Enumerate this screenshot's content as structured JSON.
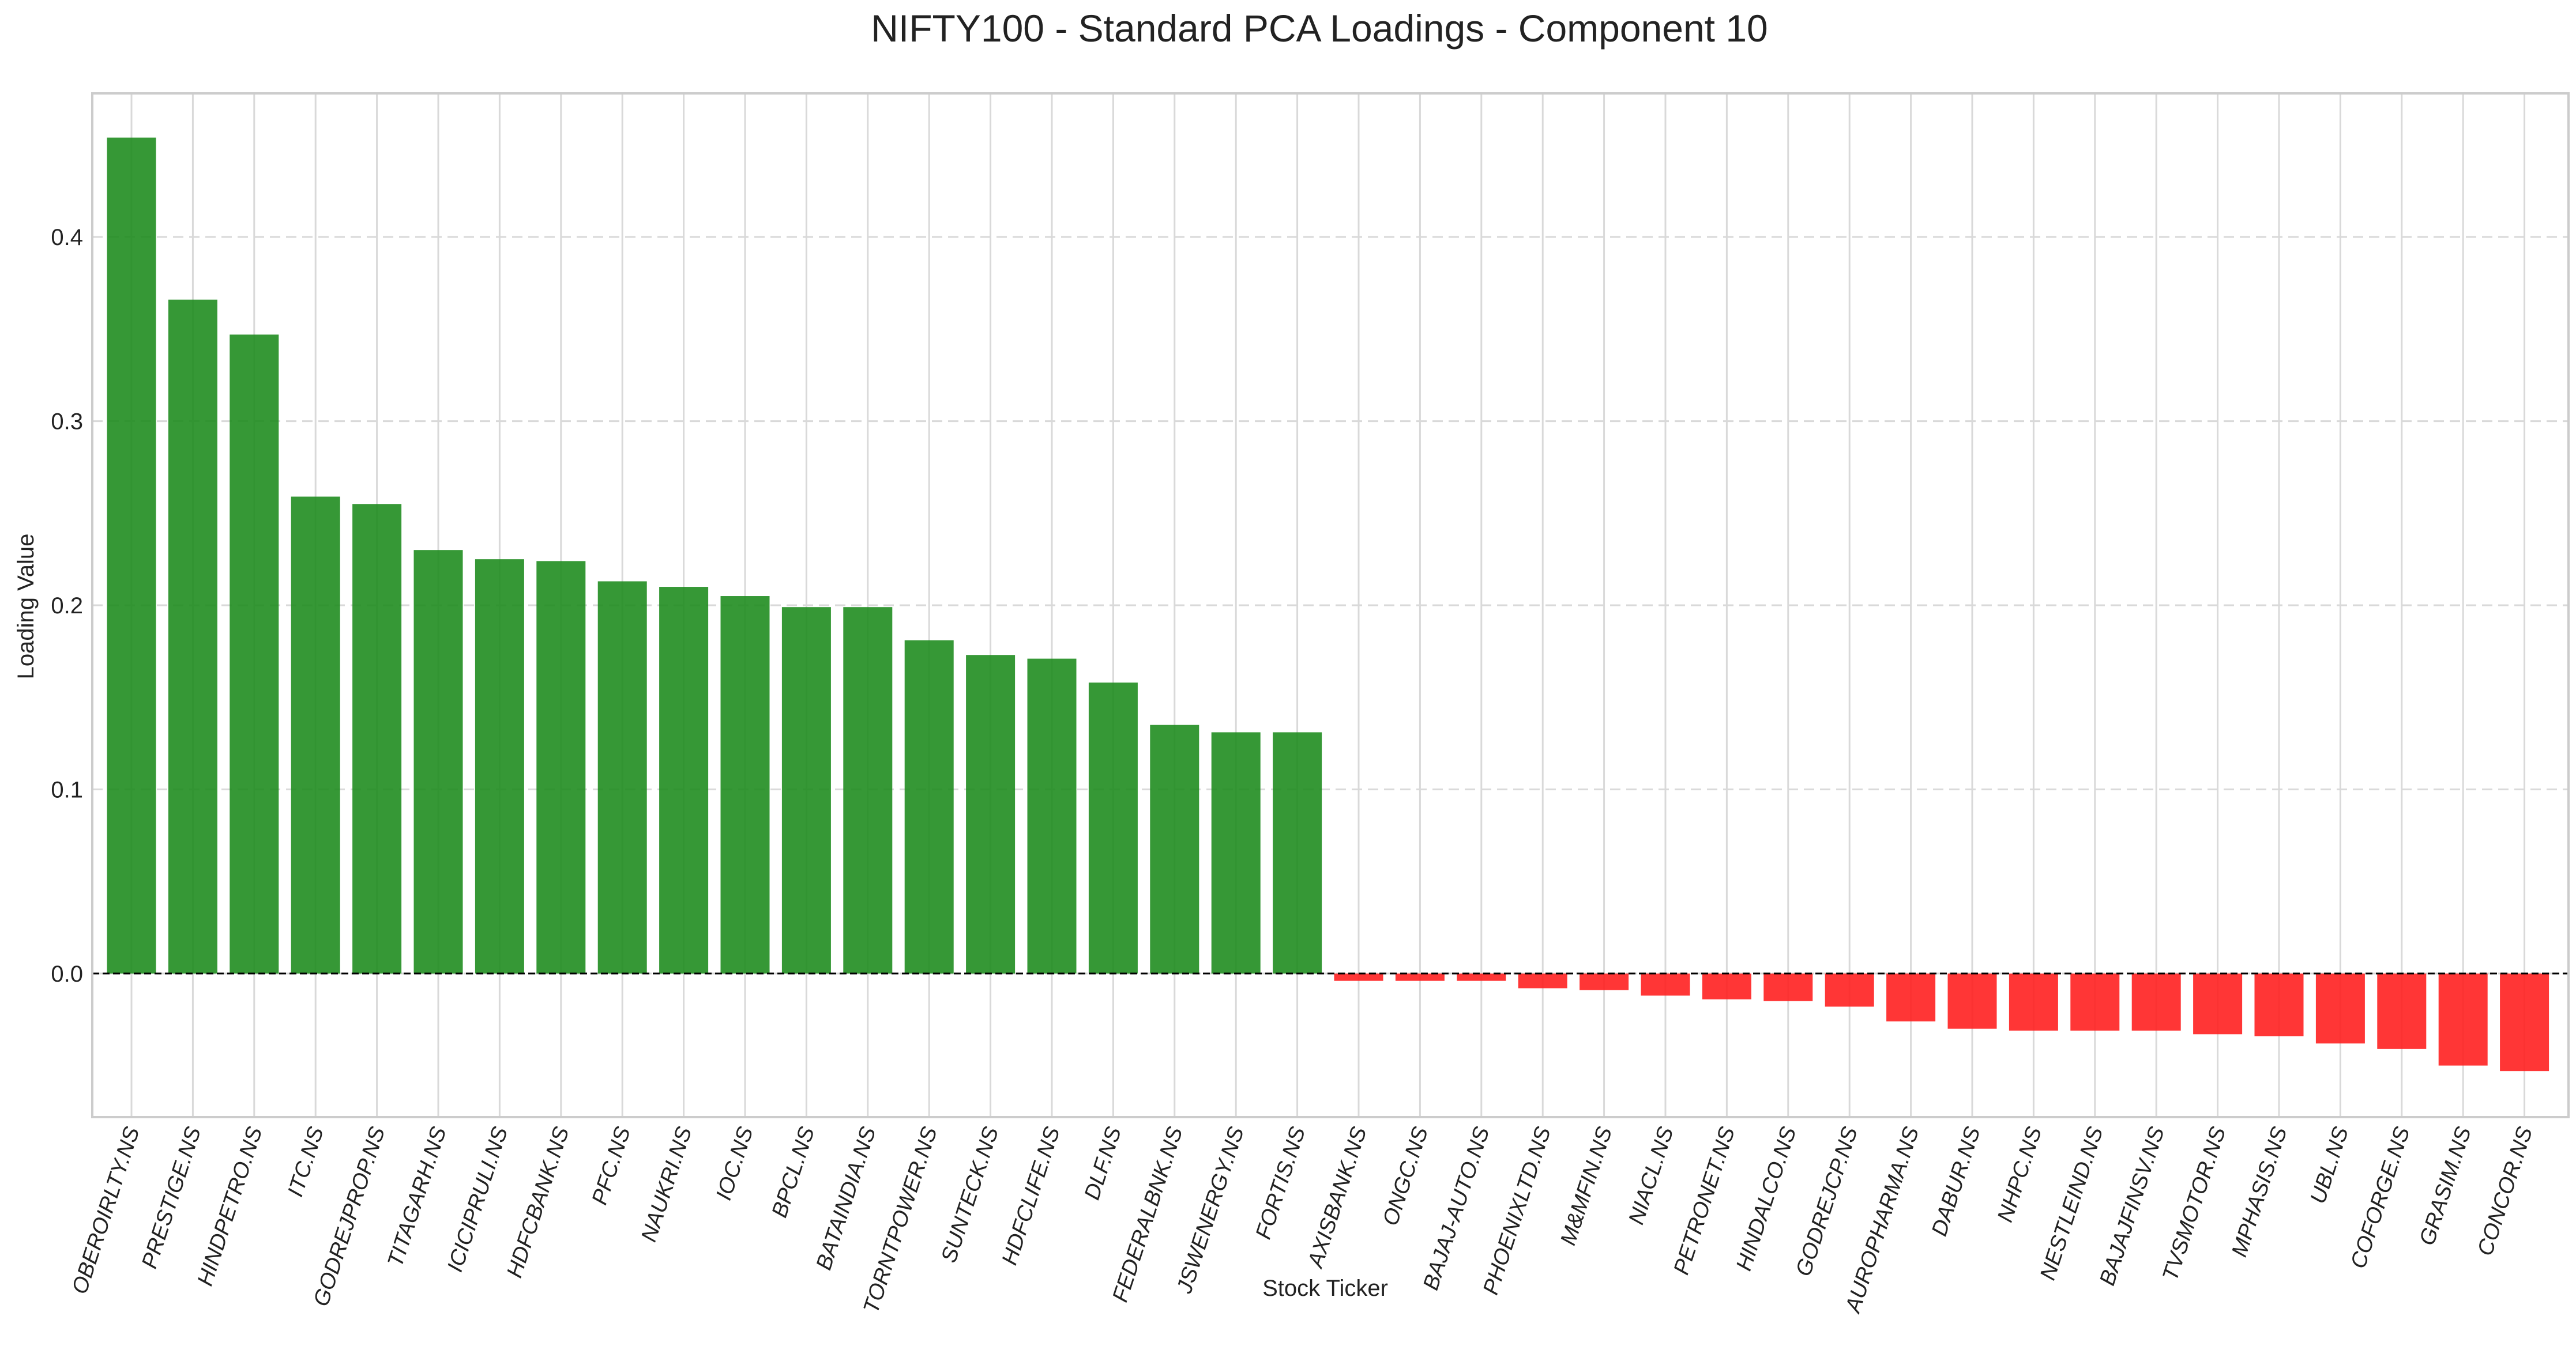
{
  "chart_data": {
    "type": "bar",
    "title": "NIFTY100 - Standard PCA Loadings - Component 10",
    "xlabel": "Stock Ticker",
    "ylabel": "Loading Value",
    "ylim": [
      -0.078,
      0.478
    ],
    "yticks": [
      0.0,
      0.1,
      0.2,
      0.3,
      0.4
    ],
    "ytick_labels": [
      "0.0",
      "0.1",
      "0.2",
      "0.3",
      "0.4"
    ],
    "grid": true,
    "baseline": 0.0,
    "colors": {
      "positive": "#1a8a1a",
      "negative": "#ff1a1a",
      "grid": "#d9d9d9",
      "spine": "#cccccc",
      "baseline": "#000000"
    },
    "categories": [
      "OBEROIRLTY.NS",
      "PRESTIGE.NS",
      "HINDPETRO.NS",
      "ITC.NS",
      "GODREJPROP.NS",
      "TITAGARH.NS",
      "ICICIPRULI.NS",
      "HDFCBANK.NS",
      "PFC.NS",
      "NAUKRI.NS",
      "IOC.NS",
      "BPCL.NS",
      "BATAINDIA.NS",
      "TORNTPOWER.NS",
      "SUNTECK.NS",
      "HDFCLIFE.NS",
      "DLF.NS",
      "FEDERALBNK.NS",
      "JSWENERGY.NS",
      "FORTIS.NS",
      "AXISBANK.NS",
      "ONGC.NS",
      "BAJAJ-AUTO.NS",
      "PHOENIXLTD.NS",
      "M&MFIN.NS",
      "NIACL.NS",
      "PETRONET.NS",
      "HINDALCO.NS",
      "GODREJCP.NS",
      "AUROPHARMA.NS",
      "DABUR.NS",
      "NHPC.NS",
      "NESTLEIND.NS",
      "BAJAJFINSV.NS",
      "TVSMOTOR.NS",
      "MPHASIS.NS",
      "UBL.NS",
      "COFORGE.NS",
      "GRASIM.NS",
      "CONCOR.NS"
    ],
    "values": [
      0.454,
      0.366,
      0.347,
      0.259,
      0.255,
      0.23,
      0.225,
      0.224,
      0.213,
      0.21,
      0.205,
      0.199,
      0.199,
      0.181,
      0.173,
      0.171,
      0.158,
      0.135,
      0.131,
      0.131,
      -0.004,
      -0.004,
      -0.004,
      -0.008,
      -0.009,
      -0.012,
      -0.014,
      -0.015,
      -0.018,
      -0.026,
      -0.03,
      -0.031,
      -0.031,
      -0.031,
      -0.033,
      -0.034,
      -0.038,
      -0.041,
      -0.05,
      -0.053
    ]
  }
}
